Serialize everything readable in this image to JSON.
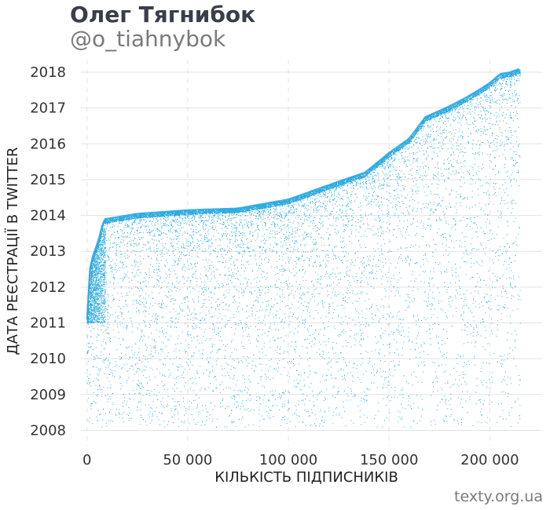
{
  "header": {
    "title": "Олег Тягнибок",
    "subtitle": "@o_tiahnybok"
  },
  "footer": {
    "credit": "texty.org.ua"
  },
  "chart_data": {
    "type": "scatter",
    "xlabel": "КІЛЬКІСТЬ ПІДПИСНИКІВ",
    "ylabel": "ДАТА РЕЄСТРАЦІЇ В TWITTER",
    "xlim": [
      -3000,
      226000
    ],
    "ylim": [
      2007.55,
      2018.35
    ],
    "x_ticks": [
      0,
      50000,
      100000,
      150000,
      200000
    ],
    "x_tick_labels": [
      "0",
      "50 000",
      "100 000",
      "150 000",
      "200 000"
    ],
    "y_ticks": [
      2008,
      2009,
      2010,
      2011,
      2012,
      2013,
      2014,
      2015,
      2016,
      2017,
      2018
    ],
    "y_tick_labels": [
      "2008",
      "2009",
      "2010",
      "2011",
      "2012",
      "2013",
      "2014",
      "2015",
      "2016",
      "2017",
      "2018"
    ],
    "grid": true,
    "point_color": "#29a8e0",
    "upper_envelope": {
      "x": [
        0,
        1000,
        2500,
        5000,
        7000,
        8000,
        9000,
        25000,
        50000,
        75000,
        100000,
        125000,
        138000,
        150000,
        160000,
        168000,
        180000,
        190000,
        200000,
        205000,
        210000,
        215000
      ],
      "y": [
        2011.1,
        2012.4,
        2012.8,
        2013.2,
        2013.55,
        2013.88,
        2013.9,
        2014.05,
        2014.15,
        2014.2,
        2014.45,
        2014.95,
        2015.2,
        2015.75,
        2016.15,
        2016.75,
        2017.05,
        2017.35,
        2017.7,
        2017.95,
        2018.0,
        2018.1
      ]
    }
  }
}
